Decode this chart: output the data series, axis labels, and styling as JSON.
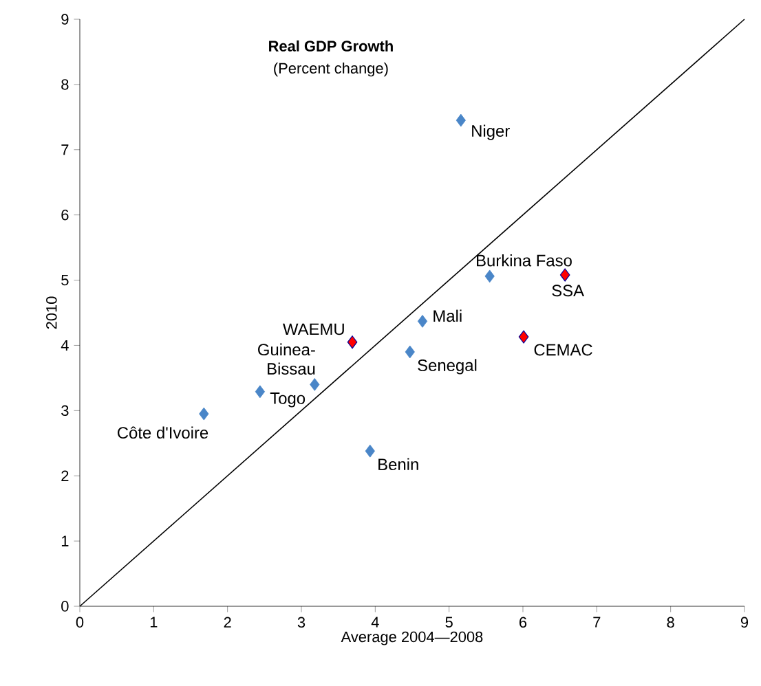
{
  "chart_data": {
    "type": "scatter",
    "title": "Real GDP Growth",
    "subtitle": "(Percent change)",
    "xlabel": "Average 2004—2008",
    "ylabel": "2010",
    "series": [
      {
        "color": "#4a86c8",
        "marker": "diamond",
        "x": [
          5.16,
          5.55,
          4.64,
          4.47,
          3.18,
          2.44,
          1.68,
          3.93
        ],
        "values": [
          7.45,
          5.06,
          4.37,
          3.9,
          3.4,
          3.29,
          2.95,
          2.38
        ]
      },
      {
        "color": "#ff0000",
        "marker": "diamond",
        "x": [
          6.57,
          6.01,
          3.69
        ],
        "values": [
          5.08,
          4.13,
          4.05
        ]
      },
      {
        "type": "line",
        "color": "#000000",
        "marker": "none",
        "x": [
          0,
          9
        ],
        "values": [
          0,
          9
        ]
      }
    ],
    "annotations": [
      {
        "text": "Niger",
        "x": 5.16,
        "y": 7.45
      },
      {
        "text": "Burkina Faso",
        "x": 5.55,
        "y": 5.06
      },
      {
        "text": "Mali",
        "x": 4.64,
        "y": 4.37
      },
      {
        "text": "Senegal",
        "x": 4.47,
        "y": 3.9
      },
      {
        "text": "Guinea-Bissau",
        "x": 3.18,
        "y": 3.4
      },
      {
        "text": "Togo",
        "x": 2.44,
        "y": 3.29
      },
      {
        "text": "Côte d'Ivoire",
        "x": 1.68,
        "y": 2.95
      },
      {
        "text": "Benin",
        "x": 3.93,
        "y": 2.38
      },
      {
        "text": "SSA",
        "x": 6.57,
        "y": 5.08
      },
      {
        "text": "CEMAC",
        "x": 6.01,
        "y": 4.13
      },
      {
        "text": "WAEMU",
        "x": 3.69,
        "y": 4.05
      }
    ],
    "xlim": [
      0,
      9
    ],
    "ylim": [
      0,
      9
    ],
    "xticks": [
      0,
      1,
      2,
      3,
      4,
      5,
      6,
      7,
      8,
      9
    ],
    "yticks": [
      0,
      1,
      2,
      3,
      4,
      5,
      6,
      7,
      8,
      9
    ],
    "grid": false
  }
}
